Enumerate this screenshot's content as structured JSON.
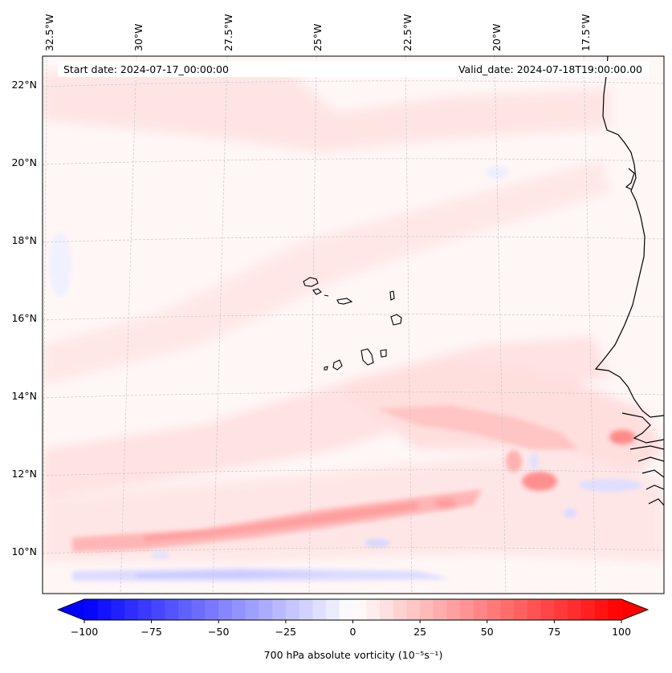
{
  "map": {
    "start_date_label": "Start date: 2024-07-17_00:00:00",
    "valid_date_label": "Valid_date: 2024-07-18T19:00:00.00",
    "lon_labels": [
      "32.5°W",
      "30°W",
      "27.5°W",
      "25°W",
      "22.5°W",
      "20°W",
      "17.5°W"
    ],
    "lat_labels": [
      "22°N",
      "20°N",
      "18°N",
      "16°N",
      "14°N",
      "12°N",
      "10°N"
    ],
    "field": "700 hPa absolute vorticity",
    "region": "Cabo Verde islands and West African coast (Senegal, Gambia, Guinea-Bissau)"
  },
  "colorbar": {
    "label": "700 hPa absolute vorticity (10⁻⁵s⁻¹)",
    "ticks": [
      "−100",
      "−75",
      "−50",
      "−25",
      "0",
      "25",
      "50",
      "75",
      "100"
    ],
    "min": -100,
    "max": 100,
    "step": 5,
    "colors": {
      "negative": "#0000ff",
      "zero": "#ffffff",
      "positive": "#ff0000"
    }
  }
}
